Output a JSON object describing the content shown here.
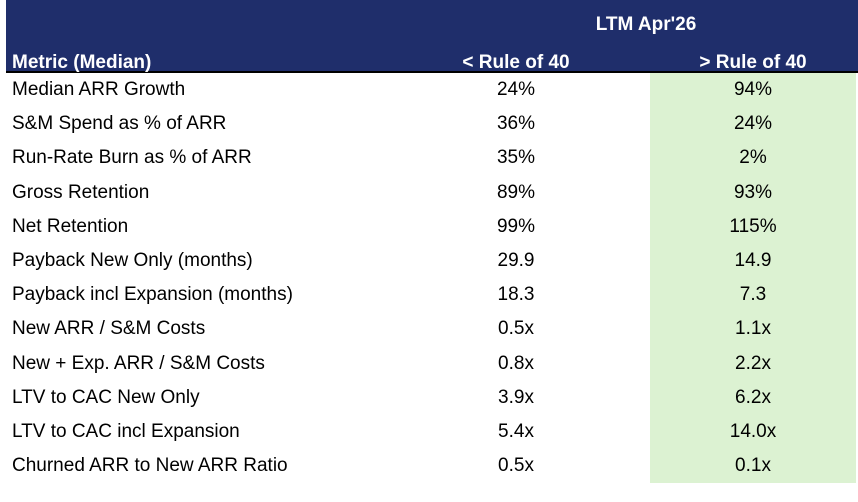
{
  "header": {
    "period": "LTM Apr'26",
    "metric_label": "Metric (Median)",
    "col_low": "< Rule of 40",
    "col_high": "> Rule of 40"
  },
  "rows": [
    {
      "metric": "Median ARR Growth",
      "low": "24%",
      "high": "94%"
    },
    {
      "metric": "S&M Spend as % of ARR",
      "low": "36%",
      "high": "24%"
    },
    {
      "metric": "Run-Rate Burn as % of ARR",
      "low": "35%",
      "high": "2%"
    },
    {
      "metric": "Gross Retention",
      "low": "89%",
      "high": "93%"
    },
    {
      "metric": "Net Retention",
      "low": "99%",
      "high": "115%"
    },
    {
      "metric": "Payback New Only (months)",
      "low": "29.9",
      "high": "14.9"
    },
    {
      "metric": "Payback incl Expansion (months)",
      "low": "18.3",
      "high": "7.3"
    },
    {
      "metric": "New ARR / S&M Costs",
      "low": "0.5x",
      "high": "1.1x"
    },
    {
      "metric": "New + Exp. ARR / S&M Costs",
      "low": "0.8x",
      "high": "2.2x"
    },
    {
      "metric": "LTV to CAC New Only",
      "low": "3.9x",
      "high": "6.2x"
    },
    {
      "metric": "LTV to CAC incl Expansion",
      "low": "5.4x",
      "high": "14.0x"
    },
    {
      "metric": "Churned ARR to New ARR Ratio",
      "low": "0.5x",
      "high": "0.1x"
    }
  ],
  "colors": {
    "header_bg": "#1f2e6b",
    "highlight_bg": "#dcf2d2"
  }
}
